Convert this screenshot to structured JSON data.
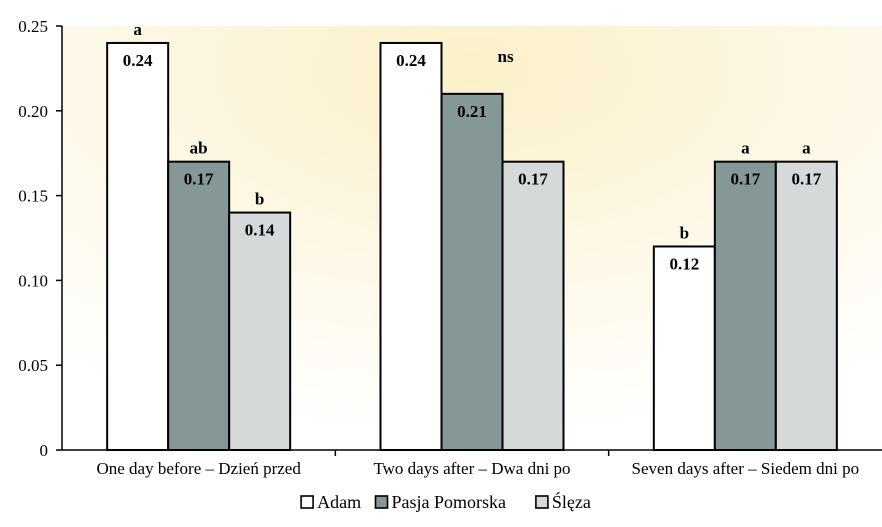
{
  "chart_data": {
    "type": "bar",
    "categories": [
      "One day before – Dzień przed",
      "Two days after – Dwa dni po",
      "Seven days after – Siedem dni po"
    ],
    "series": [
      {
        "name": "Adam",
        "values": [
          0.24,
          0.24,
          0.12
        ],
        "color": "#ffffff"
      },
      {
        "name": "Pasja Pomorska",
        "values": [
          0.17,
          0.21,
          0.17
        ],
        "color": "#869797"
      },
      {
        "name": "Ślęza",
        "values": [
          0.14,
          0.17,
          0.17
        ],
        "color": "#d5d9d9"
      }
    ],
    "value_labels": [
      [
        "0.24",
        "0.17",
        "0.14"
      ],
      [
        "0.24",
        "0.21",
        "0.17"
      ],
      [
        "0.12",
        "0.17",
        "0.17"
      ]
    ],
    "significance_labels": [
      [
        "a",
        "ab",
        "b"
      ],
      [],
      [
        "b",
        "a",
        "a"
      ]
    ],
    "group_annotations": [
      "",
      "ns",
      ""
    ],
    "yticks": [
      "0",
      "0.05",
      "0.10",
      "0.15",
      "0.20",
      "0.25"
    ],
    "ylim": [
      0,
      0.25
    ],
    "legend_position": "bottom-center",
    "background": "gradient light yellow"
  }
}
